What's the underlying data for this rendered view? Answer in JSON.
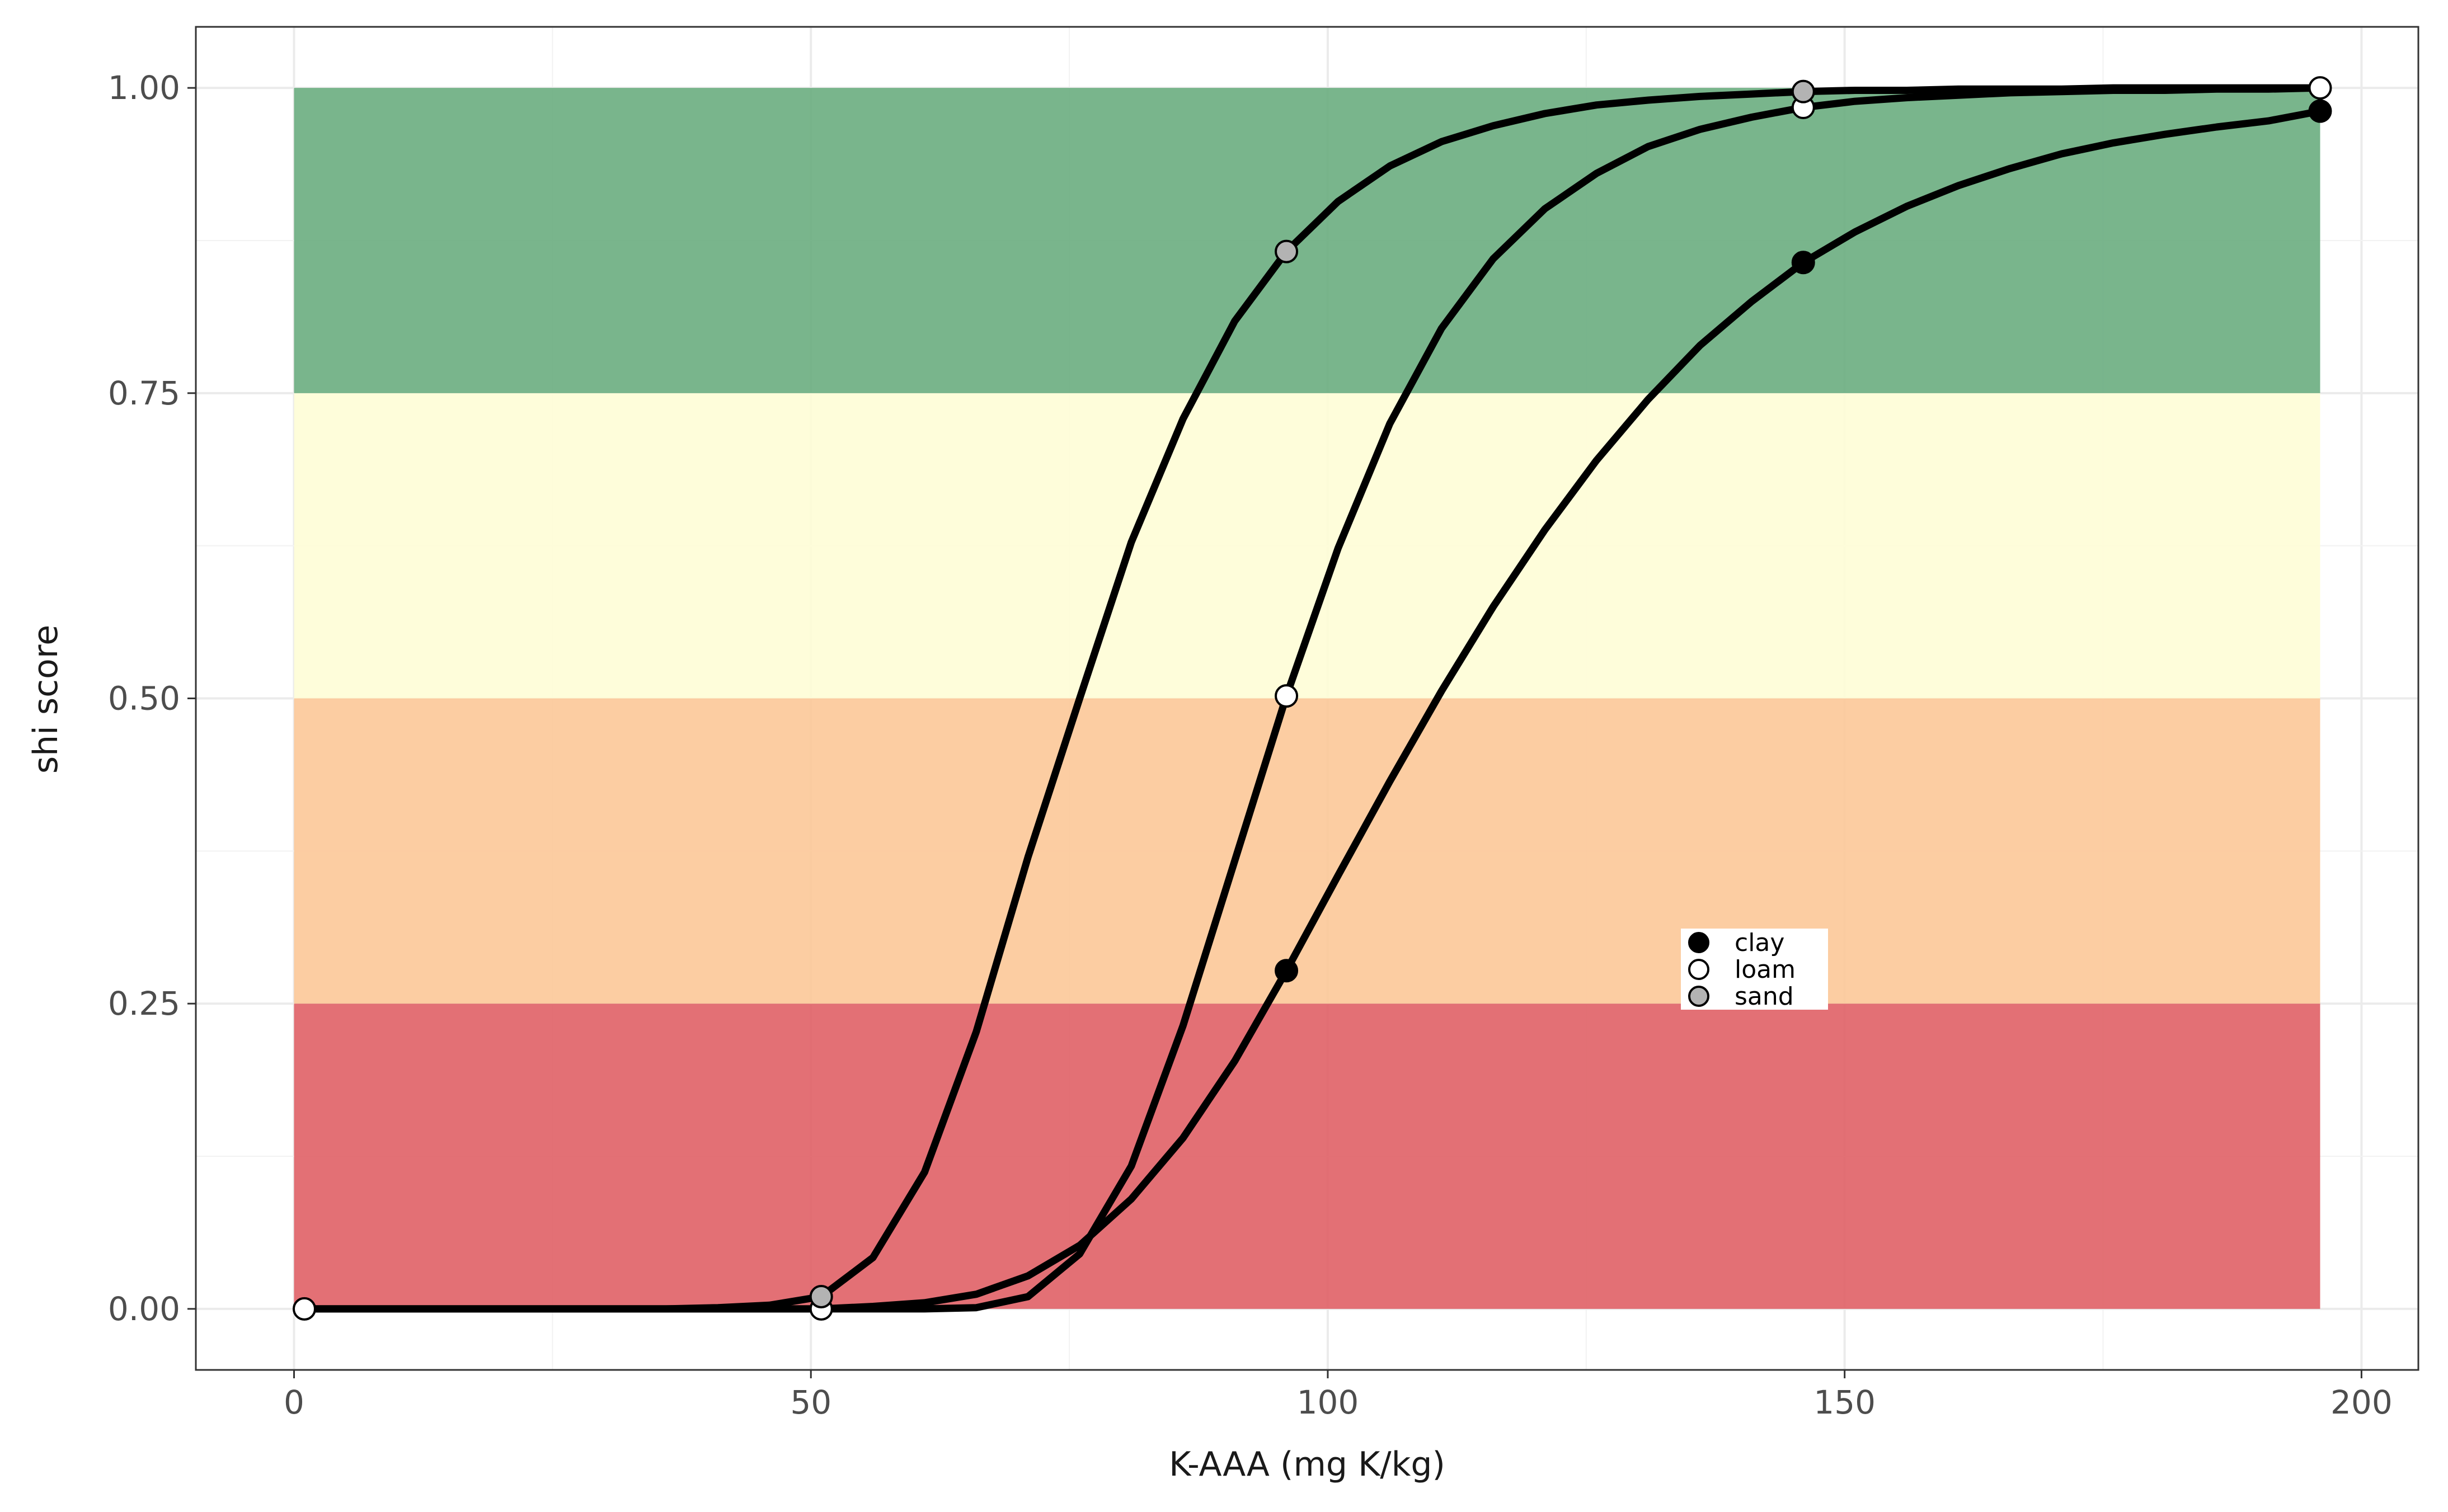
{
  "chart_data": {
    "type": "line",
    "title": "",
    "xlabel": "K-AAA (mg K/kg)",
    "ylabel": "shi score",
    "xlim": [
      -9.5,
      205.5
    ],
    "ylim": [
      -0.05,
      1.05
    ],
    "x_ticks": [
      0,
      50,
      100,
      150,
      200
    ],
    "y_ticks": [
      0,
      0.25,
      0.5,
      0.75,
      1.0
    ],
    "x_tick_labels": [
      "0",
      "50",
      "100",
      "150",
      "200"
    ],
    "y_tick_labels": [
      "0.00",
      "0.25",
      "0.50",
      "0.75",
      "1.00"
    ],
    "grid": true,
    "bands": [
      {
        "from": 0.0,
        "to": 0.25,
        "x_from": 0,
        "x_to": 196,
        "color": "#e06066"
      },
      {
        "from": 0.25,
        "to": 0.5,
        "x_from": 0,
        "x_to": 196,
        "color": "#fcc898"
      },
      {
        "from": 0.5,
        "to": 0.75,
        "x_from": 0,
        "x_to": 196,
        "color": "#fefdd6"
      },
      {
        "from": 0.75,
        "to": 1.0,
        "x_from": 0,
        "x_to": 196,
        "color": "#6aad80"
      }
    ],
    "legend": {
      "position": "inside-right",
      "entries": [
        {
          "label": "clay",
          "fill": "#000000"
        },
        {
          "label": "loam",
          "fill": "#ffffff"
        },
        {
          "label": "sand",
          "fill": "#b3b3b3"
        }
      ]
    },
    "series": [
      {
        "name": "clay",
        "marker_fill": "#000000",
        "x": [
          1,
          51,
          56,
          61,
          66,
          71,
          76,
          81,
          86,
          91,
          96,
          101,
          106,
          111,
          116,
          121,
          126,
          131,
          136,
          141,
          146,
          151,
          156,
          161,
          166,
          171,
          176,
          181,
          186,
          191,
          196
        ],
        "y": [
          0.0,
          0.0,
          0.002,
          0.005,
          0.012,
          0.027,
          0.052,
          0.09,
          0.14,
          0.203,
          0.277,
          0.355,
          0.432,
          0.506,
          0.575,
          0.638,
          0.695,
          0.745,
          0.789,
          0.825,
          0.857,
          0.882,
          0.903,
          0.92,
          0.934,
          0.946,
          0.955,
          0.962,
          0.968,
          0.973,
          0.981
        ],
        "markers_at": [
          96,
          146,
          196
        ]
      },
      {
        "name": "loam",
        "marker_fill": "#ffffff",
        "x": [
          1,
          51,
          61,
          66,
          71,
          76,
          81,
          86,
          91,
          96,
          101,
          106,
          111,
          116,
          121,
          126,
          131,
          136,
          141,
          146,
          151,
          156,
          161,
          166,
          171,
          176,
          181,
          186,
          191,
          196
        ],
        "y": [
          0.0,
          0.0,
          0.0,
          0.001,
          0.01,
          0.045,
          0.117,
          0.232,
          0.367,
          0.502,
          0.623,
          0.725,
          0.803,
          0.86,
          0.901,
          0.93,
          0.952,
          0.966,
          0.976,
          0.984,
          0.989,
          0.992,
          0.994,
          0.996,
          0.997,
          0.998,
          0.998,
          0.999,
          0.999,
          1.0
        ],
        "markers_at": [
          1,
          51,
          96,
          146,
          196
        ]
      },
      {
        "name": "sand",
        "marker_fill": "#b3b3b3",
        "x": [
          1,
          36,
          41,
          46,
          51,
          56,
          61,
          66,
          71,
          76,
          81,
          86,
          91,
          96,
          101,
          106,
          111,
          116,
          121,
          126,
          131,
          136,
          141,
          146,
          151,
          156,
          161,
          166,
          171,
          176,
          181,
          186,
          191,
          196
        ],
        "y": [
          0.0,
          0.0,
          0.001,
          0.003,
          0.01,
          0.042,
          0.112,
          0.227,
          0.37,
          0.5,
          0.628,
          0.729,
          0.809,
          0.866,
          0.907,
          0.936,
          0.956,
          0.969,
          0.979,
          0.986,
          0.99,
          0.993,
          0.995,
          0.997,
          0.998,
          0.998,
          0.999,
          0.999,
          0.999,
          1.0,
          1.0,
          1.0,
          1.0,
          1.0
        ],
        "markers_at": [
          51,
          96,
          146
        ]
      }
    ]
  }
}
